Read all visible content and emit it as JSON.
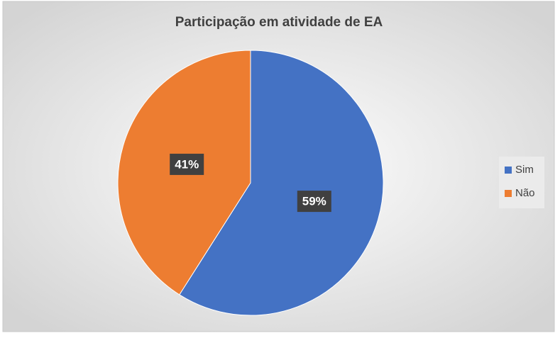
{
  "chart_data": {
    "type": "pie",
    "title": "Participação em atividade de EA",
    "categories": [
      "Sim",
      "Não"
    ],
    "values": [
      59,
      41
    ],
    "value_labels": [
      "59%",
      "41%"
    ],
    "colors": [
      "#4472c4",
      "#ed7d31"
    ],
    "legend": "right"
  }
}
